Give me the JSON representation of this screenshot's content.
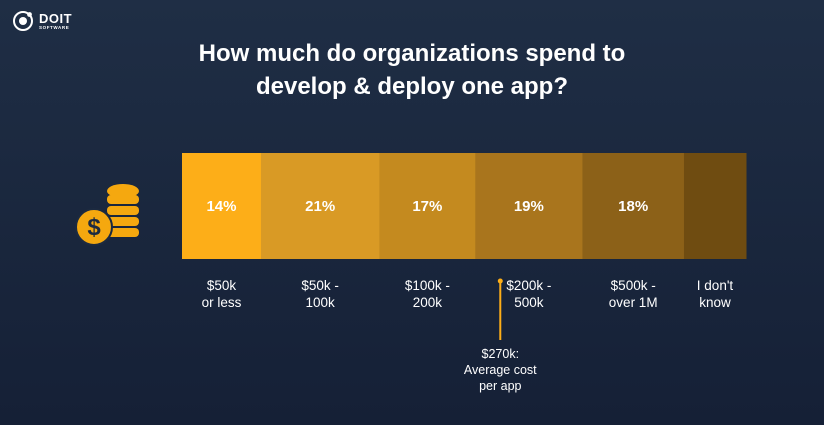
{
  "brand": {
    "name": "DOIT",
    "sub": "SOFTWARE"
  },
  "chart_data": {
    "type": "bar",
    "orientation": "horizontal-stacked",
    "title": "How much do organizations spend to develop & deploy one app?",
    "title_lines": [
      "How much do organizations spend to",
      "develop & deploy one app?"
    ],
    "categories": [
      [
        "$50k",
        "or less"
      ],
      [
        "$50k -",
        "100k"
      ],
      [
        "$100k -",
        "200k"
      ],
      [
        "$200k -",
        "500k"
      ],
      [
        "$500k -",
        "over 1M"
      ],
      [
        "I don't",
        "know"
      ]
    ],
    "values": [
      14,
      21,
      17,
      19,
      18,
      11
    ],
    "value_labels": [
      "14%",
      "21%",
      "17%",
      "19%",
      "18%",
      ""
    ],
    "colors": [
      "#fdae18",
      "#d99a25",
      "#c48a1f",
      "#a9751d",
      "#8c6118",
      "#6f4c11"
    ],
    "annotation": {
      "value_k": 270,
      "lines": [
        "$270k:",
        "Average cost",
        "per app"
      ],
      "color": "#fdae18"
    }
  }
}
